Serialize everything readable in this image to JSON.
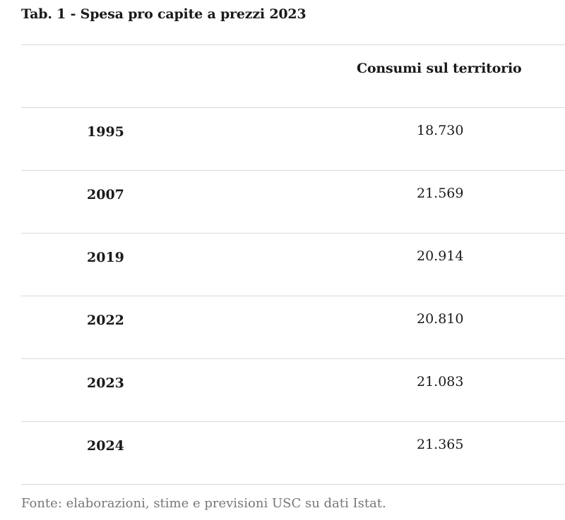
{
  "title": "Tab. 1 - Spesa pro capite a prezzi 2023",
  "table": {
    "column_header": "Consumi sul territorio",
    "rows": [
      {
        "year": "1995",
        "value": "18.730"
      },
      {
        "year": "2007",
        "value": "21.569"
      },
      {
        "year": "2019",
        "value": "20.914"
      },
      {
        "year": "2022",
        "value": "20.810"
      },
      {
        "year": "2023",
        "value": "21.083"
      },
      {
        "year": "2024",
        "value": "21.365"
      }
    ]
  },
  "source": "Fonte: elaborazioni, stime e previsioni USC su dati Istat."
}
